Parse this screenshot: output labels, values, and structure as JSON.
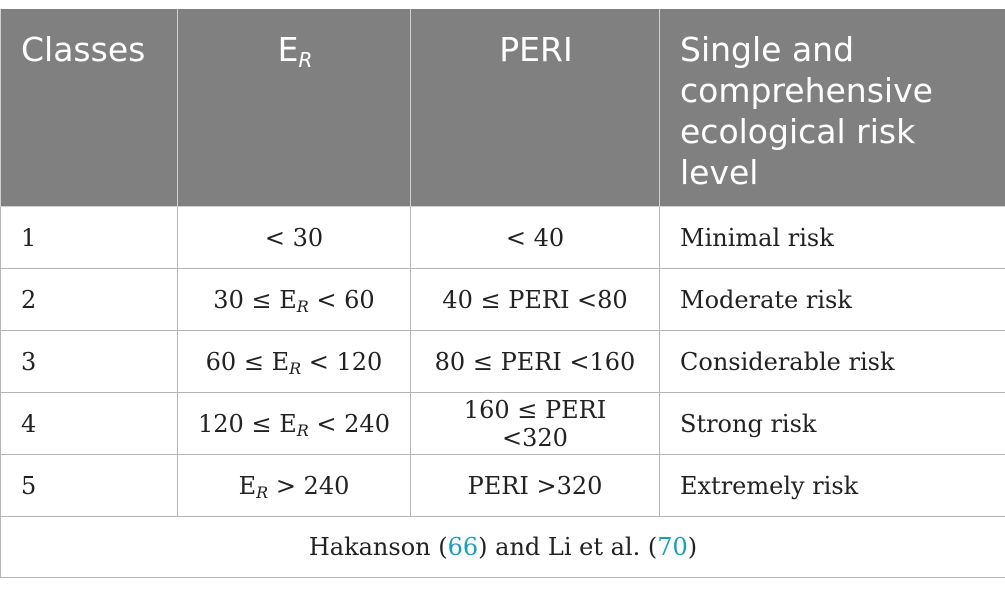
{
  "header": {
    "classes": "Classes",
    "er_main": "E",
    "er_sub": "R",
    "peri": "PERI",
    "level": "Single and comprehensive ecological risk level"
  },
  "rows": [
    {
      "cls": "1",
      "er": {
        "pre": "< 30",
        "E": "",
        "sub": "",
        "post": ""
      },
      "peri": "< 40",
      "level": "Minimal risk"
    },
    {
      "cls": "2",
      "er": {
        "pre": "30 ≤ ",
        "E": "E",
        "sub": "R",
        "post": " < 60"
      },
      "peri": "40 ≤ PERI <80",
      "level": "Moderate risk"
    },
    {
      "cls": "3",
      "er": {
        "pre": "60 ≤ ",
        "E": "E",
        "sub": "R",
        "post": " < 120"
      },
      "peri": "80 ≤ PERI <160",
      "level": "Considerable risk"
    },
    {
      "cls": "4",
      "er": {
        "pre": "120 ≤ ",
        "E": "E",
        "sub": "R",
        "post": " < 240"
      },
      "peri": "160 ≤ PERI <320",
      "level": "Strong risk"
    },
    {
      "cls": "5",
      "er": {
        "pre": "",
        "E": "E",
        "sub": "R",
        "post": " > 240"
      },
      "peri": "PERI >320",
      "level": "Extremely risk"
    }
  ],
  "footnote": {
    "t1": "Hakanson (",
    "ref1": "66",
    "t2": ") and Li et al. (",
    "ref2": "70",
    "t3": ")"
  }
}
